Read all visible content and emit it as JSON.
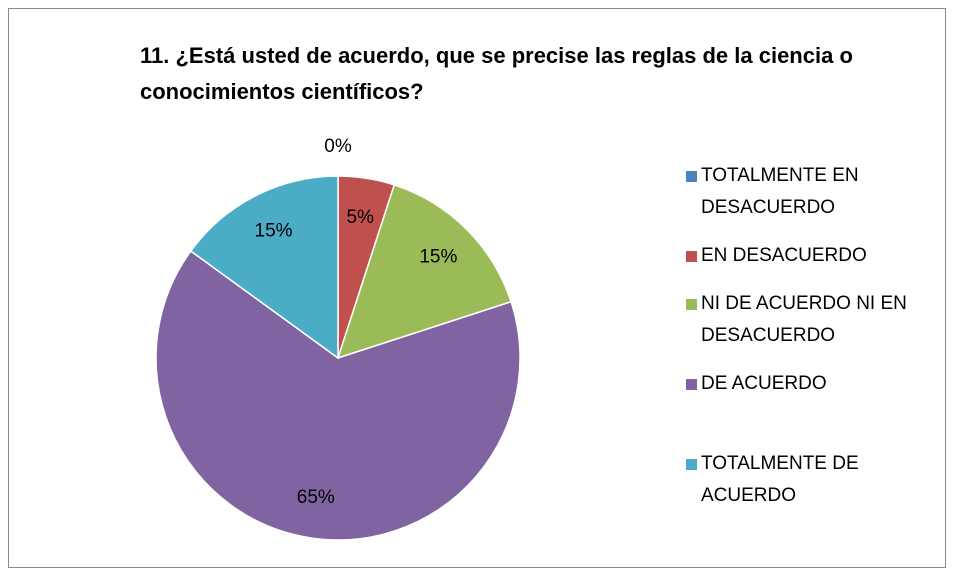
{
  "chart_data": {
    "type": "pie",
    "title": "11. ¿Está usted de acuerdo, que se precise las reglas de la ciencia o conocimientos científicos?",
    "categories": [
      "TOTALMENTE EN DESACUERDO",
      "EN DESACUERDO",
      "NI DE ACUERDO NI EN DESACUERDO",
      "DE ACUERDO",
      "TOTALMENTE DE ACUERDO"
    ],
    "values": [
      0,
      5,
      15,
      65,
      15
    ],
    "value_labels": [
      "0%",
      "5%",
      "15%",
      "65%",
      "15%"
    ],
    "colors": [
      "#4f81bd",
      "#c0504d",
      "#9bbb59",
      "#8064a2",
      "#4bacc6"
    ],
    "legend": "right"
  }
}
